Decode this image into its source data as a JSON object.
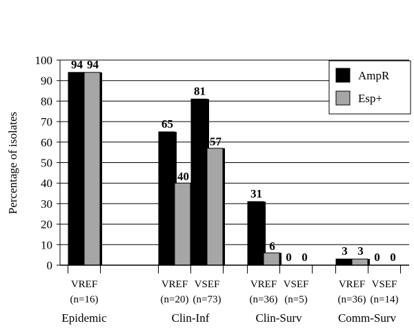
{
  "chart_data": {
    "type": "bar",
    "ylabel": "Percentage of isolates",
    "ylim": [
      0,
      100
    ],
    "yticks": [
      0,
      10,
      20,
      30,
      40,
      50,
      60,
      70,
      80,
      90,
      100
    ],
    "grid": "horizontal",
    "legend_position": "top-right",
    "series": [
      {
        "name": "AmpR",
        "color": "#000000"
      },
      {
        "name": "Esp+",
        "color": "#a6a6a6"
      }
    ],
    "groups": [
      {
        "label": "Epidemic",
        "categories": [
          {
            "label": "VREF",
            "n": "(n=16)",
            "values": [
              94,
              94
            ]
          }
        ]
      },
      {
        "label": "Clin-Inf",
        "categories": [
          {
            "label": "VREF",
            "n": "(n=20)",
            "values": [
              65,
              40
            ]
          },
          {
            "label": "VSEF",
            "n": "(n=73)",
            "values": [
              81,
              57
            ]
          }
        ]
      },
      {
        "label": "Clin-Surv",
        "categories": [
          {
            "label": "VREF",
            "n": "(n=36)",
            "values": [
              31,
              6
            ]
          },
          {
            "label": "VSEF",
            "n": "(n=5)",
            "values": [
              0,
              0
            ]
          }
        ]
      },
      {
        "label": "Comm-Surv",
        "categories": [
          {
            "label": "VREF",
            "n": "(n=36)",
            "values": [
              3,
              3
            ]
          },
          {
            "label": "VSEF",
            "n": "(n=14)",
            "values": [
              0,
              0
            ]
          }
        ]
      }
    ]
  }
}
